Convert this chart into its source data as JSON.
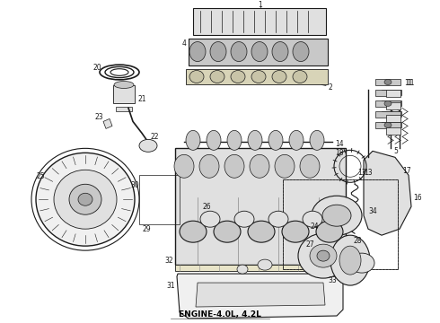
{
  "caption": "ENGINE-4.0L, 4.2L",
  "caption_fontsize": 6.5,
  "caption_fontweight": "bold",
  "bg_color": "#ffffff",
  "fig_width": 4.9,
  "fig_height": 3.6,
  "dpi": 100,
  "lc": "#1a1a1a",
  "fc_light": "#f0f0f0",
  "fc_mid": "#e0e0e0",
  "fc_dark": "#c8c8c8"
}
